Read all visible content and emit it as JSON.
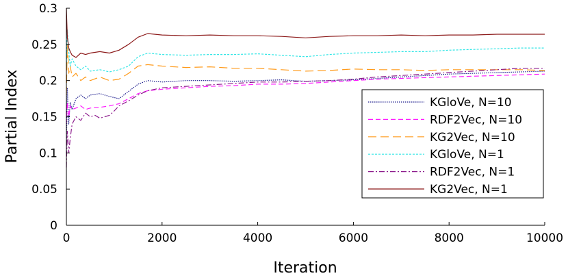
{
  "chart_data": {
    "type": "line",
    "title": "",
    "xlabel": "Iteration",
    "ylabel": "Partial Index",
    "xlim": [
      0,
      10000
    ],
    "ylim": [
      0,
      0.3
    ],
    "xticks": [
      0,
      2000,
      4000,
      6000,
      8000,
      10000
    ],
    "xtick_labels": [
      "0",
      "2000",
      "4000",
      "6000",
      "8000",
      "10000"
    ],
    "yticks": [
      0,
      0.05,
      0.1,
      0.15,
      0.2,
      0.25,
      0.3
    ],
    "ytick_labels": [
      "0",
      "0.05",
      "0.1",
      "0.15",
      "0.2",
      "0.25",
      "0.3"
    ],
    "grid": false,
    "legend_position": "right",
    "series": [
      {
        "name": "KGloVe, N=10",
        "color": "#1a1a8c",
        "dash": "1.5,1.5",
        "points": [
          [
            0,
            0.1
          ],
          [
            20,
            0.19
          ],
          [
            50,
            0.14
          ],
          [
            80,
            0.17
          ],
          [
            120,
            0.16
          ],
          [
            200,
            0.175
          ],
          [
            300,
            0.18
          ],
          [
            400,
            0.175
          ],
          [
            500,
            0.18
          ],
          [
            700,
            0.182
          ],
          [
            900,
            0.178
          ],
          [
            1100,
            0.175
          ],
          [
            1300,
            0.185
          ],
          [
            1500,
            0.195
          ],
          [
            1700,
            0.2
          ],
          [
            2000,
            0.198
          ],
          [
            2500,
            0.2
          ],
          [
            3000,
            0.2
          ],
          [
            3500,
            0.199
          ],
          [
            4000,
            0.2
          ],
          [
            4500,
            0.201
          ],
          [
            5000,
            0.199
          ],
          [
            5500,
            0.2
          ],
          [
            6000,
            0.201
          ],
          [
            6500,
            0.203
          ],
          [
            7000,
            0.205
          ],
          [
            7500,
            0.207
          ],
          [
            8000,
            0.209
          ],
          [
            8500,
            0.21
          ],
          [
            9000,
            0.211
          ],
          [
            9500,
            0.212
          ],
          [
            10000,
            0.213
          ]
        ]
      },
      {
        "name": "RDF2Vec, N=10",
        "color": "#ff1aff",
        "dash": "7,4",
        "points": [
          [
            0,
            0.14
          ],
          [
            20,
            0.17
          ],
          [
            50,
            0.15
          ],
          [
            80,
            0.165
          ],
          [
            120,
            0.16
          ],
          [
            200,
            0.162
          ],
          [
            300,
            0.165
          ],
          [
            400,
            0.16
          ],
          [
            500,
            0.162
          ],
          [
            700,
            0.163
          ],
          [
            900,
            0.165
          ],
          [
            1100,
            0.168
          ],
          [
            1300,
            0.175
          ],
          [
            1500,
            0.182
          ],
          [
            1700,
            0.186
          ],
          [
            2000,
            0.188
          ],
          [
            2500,
            0.19
          ],
          [
            3000,
            0.192
          ],
          [
            3500,
            0.193
          ],
          [
            4000,
            0.195
          ],
          [
            4500,
            0.195
          ],
          [
            5000,
            0.196
          ],
          [
            5500,
            0.198
          ],
          [
            6000,
            0.2
          ],
          [
            6500,
            0.202
          ],
          [
            7000,
            0.203
          ],
          [
            7500,
            0.204
          ],
          [
            8000,
            0.205
          ],
          [
            8500,
            0.206
          ],
          [
            9000,
            0.207
          ],
          [
            9500,
            0.208
          ],
          [
            10000,
            0.209
          ]
        ]
      },
      {
        "name": "KG2Vec, N=10",
        "color": "#ff9a1a",
        "dash": "12,6",
        "points": [
          [
            0,
            0.18
          ],
          [
            20,
            0.25
          ],
          [
            50,
            0.21
          ],
          [
            80,
            0.22
          ],
          [
            120,
            0.205
          ],
          [
            200,
            0.21
          ],
          [
            300,
            0.2
          ],
          [
            400,
            0.205
          ],
          [
            500,
            0.2
          ],
          [
            700,
            0.205
          ],
          [
            900,
            0.2
          ],
          [
            1100,
            0.202
          ],
          [
            1300,
            0.21
          ],
          [
            1500,
            0.22
          ],
          [
            1700,
            0.222
          ],
          [
            2000,
            0.22
          ],
          [
            2500,
            0.218
          ],
          [
            3000,
            0.219
          ],
          [
            3500,
            0.217
          ],
          [
            4000,
            0.217
          ],
          [
            4500,
            0.215
          ],
          [
            5000,
            0.213
          ],
          [
            5500,
            0.214
          ],
          [
            6000,
            0.216
          ],
          [
            6500,
            0.215
          ],
          [
            7000,
            0.215
          ],
          [
            7500,
            0.214
          ],
          [
            8000,
            0.215
          ],
          [
            8500,
            0.215
          ],
          [
            9000,
            0.215
          ],
          [
            9500,
            0.215
          ],
          [
            10000,
            0.214
          ]
        ]
      },
      {
        "name": "KGloVe, N=1",
        "color": "#33e6e6",
        "dash": "3,2",
        "points": [
          [
            0,
            0.22
          ],
          [
            20,
            0.27
          ],
          [
            50,
            0.24
          ],
          [
            80,
            0.22
          ],
          [
            120,
            0.23
          ],
          [
            200,
            0.22
          ],
          [
            300,
            0.215
          ],
          [
            400,
            0.22
          ],
          [
            500,
            0.213
          ],
          [
            700,
            0.215
          ],
          [
            900,
            0.212
          ],
          [
            1100,
            0.215
          ],
          [
            1300,
            0.22
          ],
          [
            1500,
            0.233
          ],
          [
            1700,
            0.238
          ],
          [
            2000,
            0.236
          ],
          [
            2500,
            0.235
          ],
          [
            3000,
            0.236
          ],
          [
            3500,
            0.236
          ],
          [
            4000,
            0.237
          ],
          [
            4500,
            0.235
          ],
          [
            5000,
            0.233
          ],
          [
            5500,
            0.236
          ],
          [
            6000,
            0.238
          ],
          [
            6500,
            0.239
          ],
          [
            7000,
            0.24
          ],
          [
            7500,
            0.24
          ],
          [
            8000,
            0.242
          ],
          [
            8500,
            0.243
          ],
          [
            9000,
            0.244
          ],
          [
            9500,
            0.245
          ],
          [
            10000,
            0.245
          ]
        ]
      },
      {
        "name": "RDF2Vec, N=1",
        "color": "#8c1a8c",
        "dash": "8,3,2,3",
        "points": [
          [
            0,
            0.08
          ],
          [
            20,
            0.13
          ],
          [
            50,
            0.1
          ],
          [
            80,
            0.12
          ],
          [
            120,
            0.14
          ],
          [
            200,
            0.15
          ],
          [
            300,
            0.145
          ],
          [
            400,
            0.155
          ],
          [
            500,
            0.15
          ],
          [
            600,
            0.152
          ],
          [
            700,
            0.148
          ],
          [
            800,
            0.15
          ],
          [
            900,
            0.152
          ],
          [
            1000,
            0.158
          ],
          [
            1100,
            0.165
          ],
          [
            1300,
            0.172
          ],
          [
            1500,
            0.18
          ],
          [
            1700,
            0.186
          ],
          [
            2000,
            0.19
          ],
          [
            2500,
            0.192
          ],
          [
            3000,
            0.194
          ],
          [
            3500,
            0.196
          ],
          [
            4000,
            0.198
          ],
          [
            4500,
            0.198
          ],
          [
            5000,
            0.199
          ],
          [
            5500,
            0.2
          ],
          [
            6000,
            0.202
          ],
          [
            6500,
            0.205
          ],
          [
            7000,
            0.207
          ],
          [
            7500,
            0.209
          ],
          [
            8000,
            0.211
          ],
          [
            8500,
            0.213
          ],
          [
            9000,
            0.215
          ],
          [
            9500,
            0.217
          ],
          [
            10000,
            0.217
          ]
        ]
      },
      {
        "name": "KG2Vec, N=1",
        "color": "#8c1a1a",
        "dash": "",
        "points": [
          [
            0,
            0.3
          ],
          [
            20,
            0.26
          ],
          [
            50,
            0.245
          ],
          [
            80,
            0.24
          ],
          [
            120,
            0.235
          ],
          [
            200,
            0.232
          ],
          [
            300,
            0.238
          ],
          [
            400,
            0.236
          ],
          [
            500,
            0.238
          ],
          [
            700,
            0.24
          ],
          [
            900,
            0.238
          ],
          [
            1100,
            0.242
          ],
          [
            1300,
            0.25
          ],
          [
            1500,
            0.26
          ],
          [
            1700,
            0.265
          ],
          [
            2000,
            0.263
          ],
          [
            2500,
            0.262
          ],
          [
            3000,
            0.263
          ],
          [
            3500,
            0.262
          ],
          [
            4000,
            0.262
          ],
          [
            4500,
            0.261
          ],
          [
            5000,
            0.259
          ],
          [
            5500,
            0.261
          ],
          [
            6000,
            0.262
          ],
          [
            6500,
            0.262
          ],
          [
            7000,
            0.263
          ],
          [
            7500,
            0.262
          ],
          [
            8000,
            0.263
          ],
          [
            8500,
            0.263
          ],
          [
            9000,
            0.264
          ],
          [
            9500,
            0.264
          ],
          [
            10000,
            0.264
          ]
        ]
      }
    ]
  }
}
